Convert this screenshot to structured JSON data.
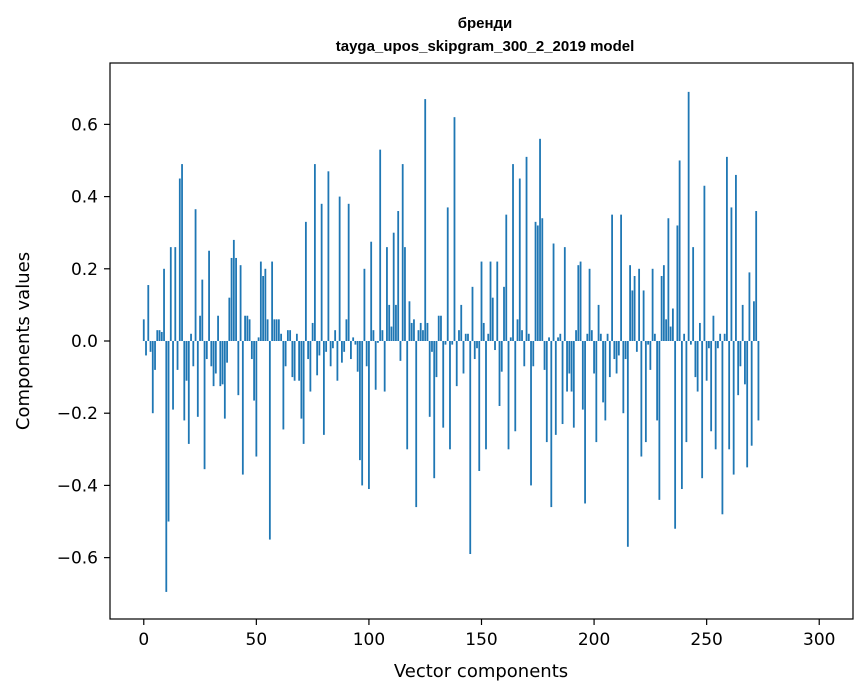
{
  "chart_data": {
    "type": "bar",
    "title": "бренди",
    "subtitle": "tayga_upos_skipgram_300_2_2019 model",
    "xlabel": "Vector components",
    "ylabel": "Components values",
    "xlim": [
      -15,
      315
    ],
    "ylim": [
      -0.77,
      0.77
    ],
    "xticks": [
      0,
      50,
      100,
      150,
      200,
      250,
      300
    ],
    "yticks": [
      -0.6,
      -0.4,
      -0.2,
      0.0,
      0.2,
      0.4,
      0.6
    ],
    "ytick_labels": [
      "−0.6",
      "−0.4",
      "−0.2",
      "0.0",
      "0.2",
      "0.4",
      "0.6"
    ],
    "xtick_labels": [
      "0",
      "50",
      "100",
      "150",
      "200",
      "250",
      "300"
    ],
    "grid": false,
    "bar_color": "#1f77b4",
    "values": [
      0.06,
      -0.04,
      0.155,
      -0.03,
      -0.2,
      -0.08,
      0.03,
      0.03,
      0.025,
      0.2,
      -0.695,
      -0.5,
      0.26,
      -0.19,
      0.26,
      -0.08,
      0.45,
      0.49,
      -0.22,
      -0.11,
      -0.285,
      0.02,
      -0.07,
      0.365,
      -0.21,
      0.07,
      0.17,
      -0.355,
      -0.05,
      0.25,
      -0.07,
      -0.125,
      -0.09,
      0.07,
      -0.125,
      -0.12,
      -0.215,
      -0.06,
      0.12,
      0.23,
      0.28,
      0.23,
      -0.15,
      0.21,
      -0.37,
      0.07,
      0.07,
      0.06,
      -0.05,
      -0.165,
      -0.32,
      0.01,
      0.22,
      0.18,
      0.2,
      0.06,
      -0.55,
      0.22,
      0.06,
      0.06,
      0.06,
      0.02,
      -0.245,
      -0.07,
      0.03,
      0.03,
      -0.1,
      -0.11,
      0.02,
      -0.11,
      -0.215,
      -0.285,
      0.33,
      -0.05,
      -0.14,
      0.05,
      0.49,
      -0.095,
      -0.04,
      0.38,
      -0.26,
      -0.03,
      0.47,
      -0.07,
      -0.02,
      0.03,
      -0.11,
      0.4,
      -0.06,
      -0.03,
      0.06,
      0.38,
      -0.05,
      0.01,
      -0.01,
      -0.085,
      -0.33,
      -0.4,
      0.2,
      -0.07,
      -0.41,
      0.275,
      0.03,
      -0.135,
      -0.005,
      0.53,
      0.03,
      -0.14,
      0.26,
      0.1,
      0.04,
      0.3,
      0.1,
      0.36,
      -0.055,
      0.49,
      0.26,
      -0.3,
      0.11,
      0.05,
      0.06,
      -0.46,
      0.03,
      0.05,
      0.03,
      0.67,
      0.05,
      -0.21,
      -0.03,
      -0.38,
      -0.1,
      0.07,
      0.07,
      -0.24,
      -0.01,
      0.37,
      -0.3,
      -0.01,
      0.62,
      -0.125,
      0.03,
      0.1,
      -0.09,
      0.02,
      0.02,
      -0.59,
      0.15,
      -0.05,
      -0.02,
      -0.36,
      0.22,
      0.05,
      -0.3,
      0.02,
      0.22,
      0.12,
      -0.025,
      0.22,
      -0.18,
      -0.085,
      0.15,
      0.35,
      -0.3,
      0.01,
      0.49,
      -0.25,
      0.06,
      0.45,
      0.03,
      -0.07,
      0.51,
      0.02,
      -0.4,
      -0.07,
      0.33,
      0.32,
      0.56,
      0.34,
      -0.08,
      -0.28,
      0.01,
      -0.46,
      0.27,
      -0.26,
      0.01,
      0.02,
      -0.23,
      0.26,
      -0.14,
      -0.09,
      -0.14,
      -0.24,
      0.03,
      0.21,
      0.22,
      -0.19,
      -0.45,
      0.02,
      0.2,
      0.03,
      -0.09,
      -0.28,
      0.1,
      0.02,
      -0.17,
      -0.22,
      0.02,
      -0.1,
      0.35,
      -0.05,
      -0.09,
      -0.04,
      0.35,
      -0.2,
      -0.05,
      -0.57,
      0.21,
      0.14,
      0.18,
      -0.03,
      0.2,
      -0.32,
      0.14,
      -0.28,
      -0.01,
      -0.08,
      0.2,
      0.02,
      -0.22,
      -0.44,
      0.18,
      0.21,
      0.06,
      0.34,
      0.04,
      0.09,
      -0.52,
      0.32,
      0.5,
      -0.41,
      0.02,
      -0.28,
      0.69,
      -0.01,
      0.26,
      -0.1,
      -0.14,
      0.05,
      -0.38,
      0.43,
      -0.11,
      -0.02,
      -0.25,
      0.07,
      -0.3,
      -0.02,
      0.02,
      -0.48,
      0.02,
      0.51,
      -0.3,
      0.37,
      -0.37,
      0.46,
      -0.15,
      -0.07,
      0.1,
      -0.12,
      -0.35,
      0.19,
      -0.29,
      0.11,
      0.36,
      -0.22
    ]
  }
}
